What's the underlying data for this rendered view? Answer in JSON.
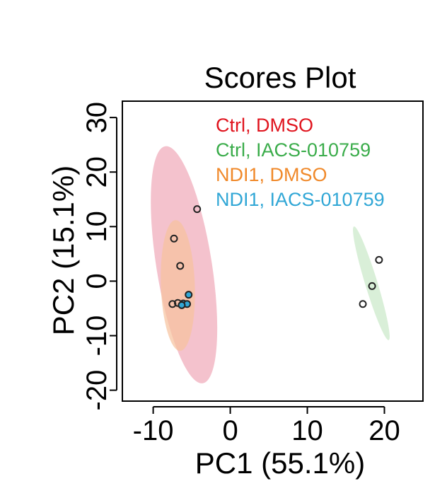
{
  "chart_data": {
    "type": "scatter",
    "title": "Scores Plot",
    "xlabel": "PC1 (55.1%)",
    "ylabel": "PC2 (15.1%)",
    "xlim": [
      -14,
      25
    ],
    "ylim": [
      -22,
      33
    ],
    "xticks": [
      -10,
      0,
      10,
      20
    ],
    "yticks": [
      -20,
      -10,
      0,
      10,
      20,
      30
    ],
    "xtick_labels": [
      "-10",
      "0",
      "10",
      "20"
    ],
    "ytick_labels": [
      "-20",
      "-10",
      "0",
      "10",
      "20",
      "30"
    ],
    "grid": false,
    "legend_position": "top-right",
    "series": [
      {
        "name": "Ctrl, DMSO",
        "color": "#e0141e",
        "fill": "#f0a8b8",
        "points": [
          [
            -4.3,
            13.2
          ],
          [
            -7.3,
            7.8
          ],
          [
            -6.5,
            2.8
          ]
        ],
        "ellipse": {
          "center": [
            -6.0,
            3.0
          ],
          "rx": 3.6,
          "ry": 22.0,
          "angle": 81
        }
      },
      {
        "name": "Ctrl, IACS-010759",
        "color": "#3aac4a",
        "fill": "#c9e8c7",
        "points": [
          [
            19.3,
            3.9
          ],
          [
            18.4,
            -0.9
          ],
          [
            17.2,
            -4.2
          ]
        ],
        "ellipse": {
          "center": [
            18.3,
            -0.4
          ],
          "rx": 0.8,
          "ry": 10.9,
          "angle": 73
        }
      },
      {
        "name": "NDI1, DMSO",
        "color": "#f0892a",
        "fill": "#f7c29d",
        "points": [
          [
            -7.5,
            -4.2
          ],
          [
            -6.8,
            -4.0
          ]
        ],
        "ellipse": {
          "center": [
            -6.8,
            -0.8
          ],
          "rx": 2.2,
          "ry": 12.0,
          "angle": 88
        }
      },
      {
        "name": "NDI1, IACS-010759",
        "color": "#31a7d6",
        "fill": "#31a7d6",
        "points": [
          [
            -5.4,
            -2.5
          ],
          [
            -6.1,
            -4.1
          ],
          [
            -5.6,
            -4.2
          ],
          [
            -6.3,
            -4.4
          ]
        ],
        "ellipse": null
      }
    ]
  }
}
